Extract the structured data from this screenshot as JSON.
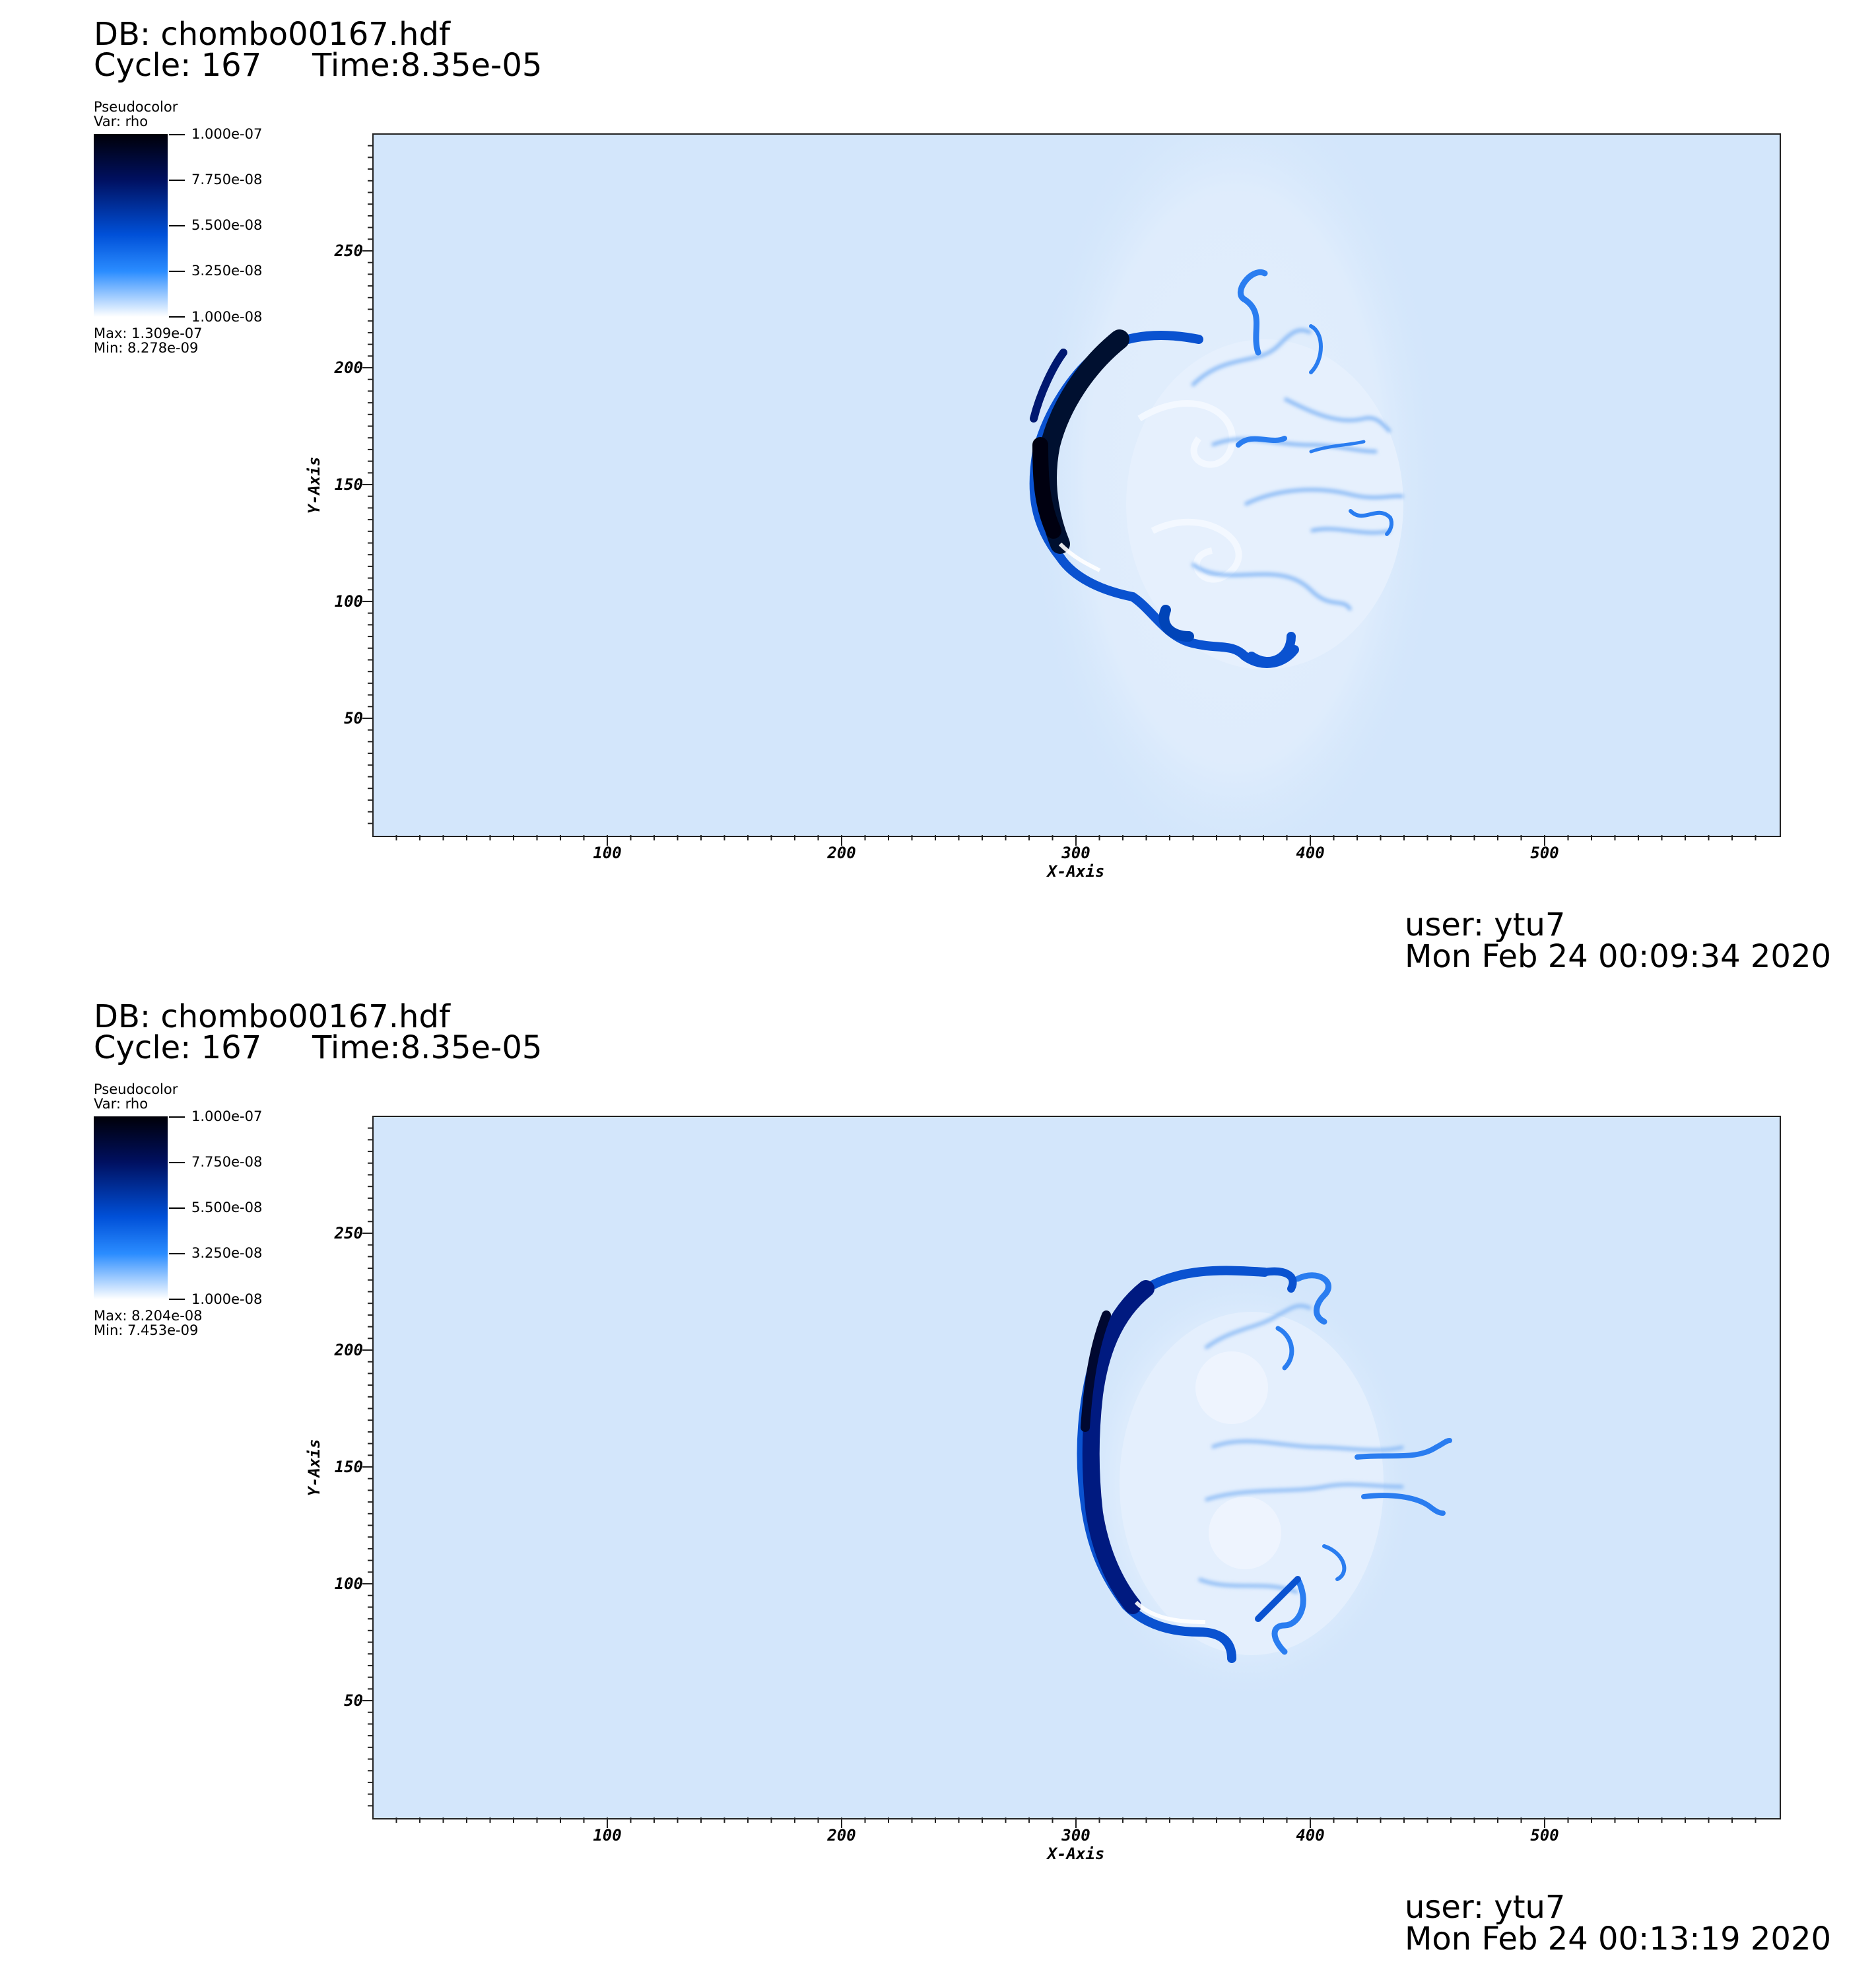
{
  "panels": [
    {
      "db": "DB: chombo00167.hdf",
      "cycle": "Cycle: 167",
      "time": "Time:8.35e-05",
      "legend": {
        "title": "Pseudocolor",
        "var": "Var: rho",
        "ticks": [
          "1.000e-07",
          "7.750e-08",
          "5.500e-08",
          "3.250e-08",
          "1.000e-08"
        ],
        "max": "Max:  1.309e-07",
        "min": "Min:  8.278e-09"
      },
      "user": "user: ytu7",
      "date": "Mon Feb 24 00:09:34 2020"
    },
    {
      "db": "DB: chombo00167.hdf",
      "cycle": "Cycle: 167",
      "time": "Time:8.35e-05",
      "legend": {
        "title": "Pseudocolor",
        "var": "Var: rho",
        "ticks": [
          "1.000e-07",
          "7.750e-08",
          "5.500e-08",
          "3.250e-08",
          "1.000e-08"
        ],
        "max": "Max:  8.204e-08",
        "min": "Min:  7.453e-09"
      },
      "user": "user: ytu7",
      "date": "Mon Feb 24 00:13:19 2020"
    }
  ],
  "chart_data": [
    {
      "type": "heatmap",
      "variable": "rho",
      "xlabel": "X-Axis",
      "ylabel": "Y-Axis",
      "xlim": [
        0,
        600
      ],
      "ylim": [
        0,
        300
      ],
      "xticks": [
        "100",
        "200",
        "300",
        "400",
        "500"
      ],
      "yticks": [
        "50",
        "100",
        "150",
        "200",
        "250"
      ],
      "colorbar": {
        "min": 1e-08,
        "max": 1e-07,
        "colors": [
          "#ffffff",
          "#2a8cff",
          "#0050d8",
          "#001060",
          "#000008"
        ]
      },
      "features": {
        "shell_center": [
          375,
          148
        ],
        "shell_radius": 58,
        "leading_edge_x": 315
      }
    },
    {
      "type": "heatmap",
      "variable": "rho",
      "xlabel": "X-Axis",
      "ylabel": "Y-Axis",
      "xlim": [
        0,
        600
      ],
      "ylim": [
        0,
        300
      ],
      "xticks": [
        "100",
        "200",
        "300",
        "400",
        "500"
      ],
      "yticks": [
        "50",
        "100",
        "150",
        "200",
        "250"
      ],
      "colorbar": {
        "min": 1e-08,
        "max": 1e-07,
        "colors": [
          "#ffffff",
          "#2a8cff",
          "#0050d8",
          "#001060",
          "#000008"
        ]
      },
      "features": {
        "shell_center": [
          380,
          148
        ],
        "shell_radius": 63,
        "leading_edge_x": 320
      }
    }
  ]
}
